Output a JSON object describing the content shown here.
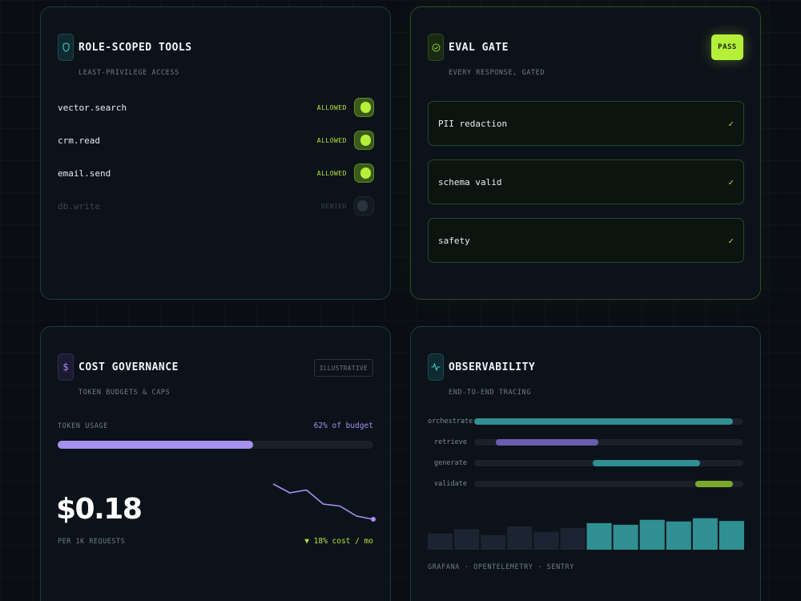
{
  "tools": {
    "title": "ROLE-SCOPED TOOLS",
    "subtitle": "LEAST-PRIVILEGE ACCESS",
    "items": [
      {
        "name": "vector.search",
        "status": "ALLOWED",
        "enabled": true
      },
      {
        "name": "crm.read",
        "status": "ALLOWED",
        "enabled": true
      },
      {
        "name": "email.send",
        "status": "ALLOWED",
        "enabled": true
      },
      {
        "name": "db.write",
        "status": "DENIED",
        "enabled": false
      }
    ]
  },
  "eval": {
    "title": "EVAL GATE",
    "subtitle": "EVERY RESPONSE, GATED",
    "badge": "PASS",
    "checks": [
      {
        "label": "PII redaction",
        "mark": "✓"
      },
      {
        "label": "schema valid",
        "mark": "✓"
      },
      {
        "label": "safety",
        "mark": "✓"
      }
    ]
  },
  "cost": {
    "icon": "$",
    "title": "COST GOVERNANCE",
    "subtitle": "TOKEN BUDGETS & CAPS",
    "badge": "ILLUSTRATIVE",
    "usage_label": "TOKEN USAGE",
    "usage_text": "62% of budget",
    "usage_fraction": 0.62,
    "amount": "$0.18",
    "amount_unit": "PER 1K REQUESTS",
    "trend_text": "▼ 18% cost / mo",
    "sparkline_values": [
      100,
      78,
      85,
      50,
      45,
      20,
      12
    ]
  },
  "observability": {
    "title": "OBSERVABILITY",
    "subtitle": "END-TO-END TRACING",
    "spans": [
      {
        "label": "orchestrate",
        "start": 0.0,
        "end": 0.96,
        "color": "#2f8f92"
      },
      {
        "label": "retrieve",
        "start": 0.08,
        "end": 0.46,
        "color": "#6d5bb0"
      },
      {
        "label": "generate",
        "start": 0.44,
        "end": 0.84,
        "color": "#2f8f92"
      },
      {
        "label": "validate",
        "start": 0.82,
        "end": 0.96,
        "color": "#7ba82a"
      }
    ],
    "histogram": [
      {
        "value": 0.42,
        "highlight": false
      },
      {
        "value": 0.58,
        "highlight": false
      },
      {
        "value": 0.36,
        "highlight": false
      },
      {
        "value": 0.68,
        "highlight": false
      },
      {
        "value": 0.48,
        "highlight": false
      },
      {
        "value": 0.62,
        "highlight": false
      },
      {
        "value": 0.8,
        "highlight": true
      },
      {
        "value": 0.74,
        "highlight": true
      },
      {
        "value": 0.92,
        "highlight": true
      },
      {
        "value": 0.86,
        "highlight": true
      },
      {
        "value": 0.98,
        "highlight": true
      },
      {
        "value": 0.88,
        "highlight": true
      }
    ],
    "footer": "GRAFANA · OPENTELEMETRY · SENTRY"
  },
  "colors": {
    "accent_green": "#b4f03a",
    "accent_purple": "#a690f0",
    "accent_teal": "#3ec7c5",
    "hist_dim": "#1c2431",
    "hist_hi": "#2f8f92"
  }
}
